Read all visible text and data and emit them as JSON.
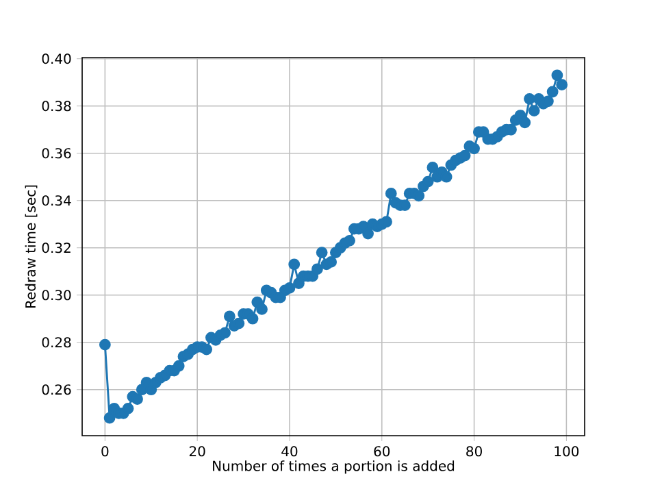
{
  "chart_data": {
    "type": "line",
    "xlabel": "Number of times a portion is added",
    "ylabel": "Redraw time [sec]",
    "x": [
      0,
      1,
      2,
      3,
      4,
      5,
      6,
      7,
      8,
      9,
      10,
      11,
      12,
      13,
      14,
      15,
      16,
      17,
      18,
      19,
      20,
      21,
      22,
      23,
      24,
      25,
      26,
      27,
      28,
      29,
      30,
      31,
      32,
      33,
      34,
      35,
      36,
      37,
      38,
      39,
      40,
      41,
      42,
      43,
      44,
      45,
      46,
      47,
      48,
      49,
      50,
      51,
      52,
      53,
      54,
      55,
      56,
      57,
      58,
      59,
      60,
      61,
      62,
      63,
      64,
      65,
      66,
      67,
      68,
      69,
      70,
      71,
      72,
      73,
      74,
      75,
      76,
      77,
      78,
      79,
      80,
      81,
      82,
      83,
      84,
      85,
      86,
      87,
      88,
      89,
      90,
      91,
      92,
      93,
      94,
      95,
      96,
      97,
      98,
      99
    ],
    "values": [
      0.279,
      0.248,
      0.252,
      0.25,
      0.25,
      0.252,
      0.257,
      0.256,
      0.26,
      0.263,
      0.26,
      0.263,
      0.265,
      0.266,
      0.268,
      0.268,
      0.27,
      0.274,
      0.275,
      0.277,
      0.278,
      0.278,
      0.277,
      0.282,
      0.281,
      0.283,
      0.284,
      0.291,
      0.287,
      0.288,
      0.292,
      0.292,
      0.29,
      0.297,
      0.294,
      0.302,
      0.301,
      0.299,
      0.299,
      0.302,
      0.303,
      0.313,
      0.305,
      0.308,
      0.308,
      0.308,
      0.311,
      0.318,
      0.313,
      0.314,
      0.318,
      0.32,
      0.322,
      0.323,
      0.328,
      0.328,
      0.329,
      0.326,
      0.33,
      0.329,
      0.33,
      0.331,
      0.343,
      0.339,
      0.338,
      0.338,
      0.343,
      0.343,
      0.342,
      0.346,
      0.348,
      0.354,
      0.35,
      0.352,
      0.35,
      0.355,
      0.357,
      0.358,
      0.359,
      0.363,
      0.362,
      0.369,
      0.369,
      0.366,
      0.366,
      0.367,
      0.369,
      0.37,
      0.37,
      0.374,
      0.376,
      0.373,
      0.383,
      0.378,
      0.383,
      0.381,
      0.382,
      0.386,
      0.393,
      0.389
    ],
    "color": "#1f77b4",
    "marker": "circle",
    "line_style": "solid",
    "grid": true,
    "xlim": [
      -4.95,
      103.95
    ],
    "ylim": [
      0.2405,
      0.4005
    ],
    "xticks": [
      0,
      20,
      40,
      60,
      80,
      100
    ],
    "yticks": [
      {
        "value": 0.26,
        "label": "0.26"
      },
      {
        "value": 0.28,
        "label": "0.28"
      },
      {
        "value": 0.3,
        "label": "0.30"
      },
      {
        "value": 0.32,
        "label": "0.32"
      },
      {
        "value": 0.34,
        "label": "0.34"
      },
      {
        "value": 0.36,
        "label": "0.36"
      },
      {
        "value": 0.38,
        "label": "0.38"
      },
      {
        "value": 0.4,
        "label": "0.40"
      }
    ]
  }
}
